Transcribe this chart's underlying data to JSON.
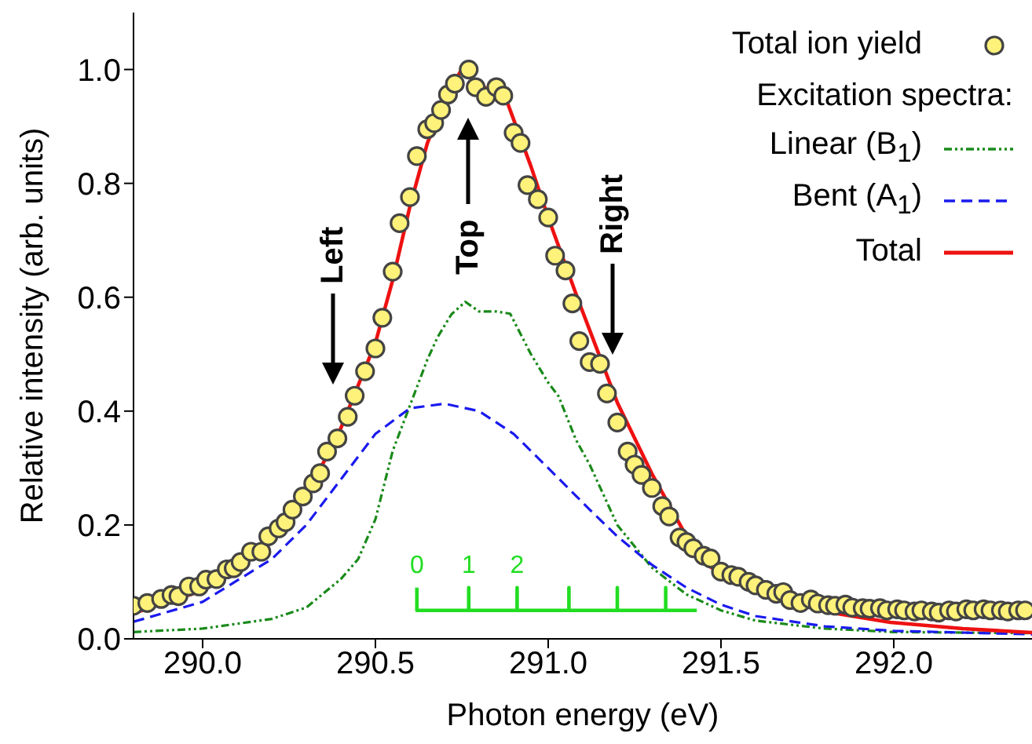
{
  "chart_data": {
    "type": "line",
    "xlabel": "Photon energy (eV)",
    "ylabel": "Relative intensity (arb. units)",
    "legend_title": "Excitation spectra:",
    "legend": "top right",
    "grid": false,
    "xlim": [
      289.8,
      292.4
    ],
    "xticks": [
      {
        "value": 290,
        "label": "290.0"
      },
      {
        "value": 290.5,
        "label": "290.5"
      },
      {
        "value": 291,
        "label": "291.0"
      },
      {
        "value": 291.5,
        "label": "291.5"
      },
      {
        "value": 292,
        "label": "292.0"
      }
    ],
    "ylim": [
      0,
      1.1
    ],
    "yticks": [
      {
        "value": 0,
        "label": "0.0"
      },
      0.2,
      0.4,
      0.6,
      0.8,
      {
        "value": 1,
        "label": "1.0"
      }
    ],
    "annotations": [
      "Left",
      "Top",
      "Right",
      "0",
      "1",
      "2"
    ],
    "series": [
      {
        "name": "Total ion yield",
        "type": "scatter",
        "marker": "circle",
        "color": "#fff27a",
        "x": [
          289.8,
          289.84,
          289.88,
          289.91,
          289.93,
          289.96,
          289.99,
          290.01,
          290.04,
          290.07,
          290.09,
          290.11,
          290.14,
          290.17,
          290.19,
          290.22,
          290.24,
          290.26,
          290.29,
          290.32,
          290.34,
          290.36,
          290.39,
          290.42,
          290.44,
          290.47,
          290.5,
          290.52,
          290.55,
          290.57,
          290.6,
          290.62,
          290.65,
          290.67,
          290.69,
          290.71,
          290.73,
          290.77,
          290.79,
          290.82,
          290.85,
          290.87,
          290.9,
          290.92,
          290.94,
          290.97,
          291,
          291.02,
          291.05,
          291.07,
          291.09,
          291.12,
          291.15,
          291.17,
          291.2,
          291.23,
          291.25,
          291.27,
          291.3,
          291.33,
          291.35,
          291.38,
          291.4,
          291.42,
          291.45,
          291.47,
          291.5,
          291.53,
          291.55,
          291.58,
          291.6,
          291.63,
          291.66,
          291.68,
          291.7,
          291.73,
          291.76,
          291.78,
          291.81,
          291.83,
          291.86,
          291.88,
          291.91,
          291.93,
          291.96,
          291.98,
          292.01,
          292.03,
          292.06,
          292.08,
          292.11,
          292.13,
          292.16,
          292.18,
          292.21,
          292.23,
          292.26,
          292.28,
          292.31,
          292.33,
          292.36,
          292.38
        ],
        "values": [
          0.058,
          0.063,
          0.07,
          0.077,
          0.075,
          0.092,
          0.092,
          0.104,
          0.105,
          0.122,
          0.124,
          0.135,
          0.153,
          0.153,
          0.18,
          0.194,
          0.205,
          0.227,
          0.25,
          0.273,
          0.291,
          0.329,
          0.352,
          0.39,
          0.427,
          0.47,
          0.51,
          0.564,
          0.645,
          0.73,
          0.776,
          0.848,
          0.895,
          0.906,
          0.929,
          0.956,
          0.975,
          1.0,
          0.969,
          0.952,
          0.969,
          0.954,
          0.889,
          0.871,
          0.797,
          0.772,
          0.74,
          0.673,
          0.647,
          0.589,
          0.523,
          0.486,
          0.483,
          0.431,
          0.38,
          0.329,
          0.306,
          0.288,
          0.265,
          0.233,
          0.215,
          0.178,
          0.17,
          0.159,
          0.146,
          0.141,
          0.118,
          0.112,
          0.109,
          0.1,
          0.094,
          0.086,
          0.079,
          0.082,
          0.068,
          0.063,
          0.069,
          0.062,
          0.059,
          0.058,
          0.06,
          0.055,
          0.054,
          0.053,
          0.054,
          0.05,
          0.052,
          0.05,
          0.048,
          0.05,
          0.048,
          0.046,
          0.05,
          0.048,
          0.052,
          0.05,
          0.052,
          0.05,
          0.05,
          0.048,
          0.05,
          0.05
        ]
      },
      {
        "name": "Linear (B$_{1}$)",
        "line_style": "dotted",
        "color": "#1a8a1a",
        "x": [
          289.8,
          290.0,
          290.2,
          290.3,
          290.4,
          290.45,
          290.5,
          290.55,
          290.6,
          290.65,
          290.68,
          290.72,
          290.76,
          290.8,
          290.85,
          290.89,
          290.95,
          291.0,
          291.03,
          291.08,
          291.12,
          291.2,
          291.3,
          291.4,
          291.5,
          291.6,
          291.8,
          292.0,
          292.4
        ],
        "values": [
          0.012,
          0.018,
          0.035,
          0.055,
          0.105,
          0.14,
          0.21,
          0.33,
          0.41,
          0.49,
          0.53,
          0.57,
          0.592,
          0.575,
          0.575,
          0.571,
          0.5,
          0.45,
          0.426,
          0.35,
          0.306,
          0.2,
          0.125,
          0.078,
          0.05,
          0.032,
          0.018,
          0.012,
          0.01
        ]
      },
      {
        "name": "Bent (A$_{1}$)",
        "line_style": "dashed",
        "color": "#1a1aee",
        "x": [
          289.8,
          290.0,
          290.2,
          290.3,
          290.4,
          290.5,
          290.6,
          290.7,
          290.8,
          290.9,
          291.0,
          291.12,
          291.2,
          291.3,
          291.4,
          291.5,
          291.6,
          291.8,
          292.0,
          292.4
        ],
        "values": [
          0.03,
          0.065,
          0.14,
          0.2,
          0.28,
          0.36,
          0.405,
          0.413,
          0.4,
          0.36,
          0.3,
          0.227,
          0.18,
          0.13,
          0.09,
          0.06,
          0.04,
          0.022,
          0.014,
          0.008
        ]
      },
      {
        "name": "Total",
        "line_style": "solid",
        "color": "#ee1111",
        "x": [
          289.8,
          290.0,
          290.2,
          290.3,
          290.4,
          290.5,
          290.55,
          290.6,
          290.65,
          290.7,
          290.75,
          290.8,
          290.85,
          290.88,
          290.95,
          291.0,
          291.09,
          291.2,
          291.3,
          291.4,
          291.46,
          291.5,
          291.6,
          291.8,
          291.99,
          292.2,
          292.4
        ],
        "values": [
          0.045,
          0.085,
          0.17,
          0.25,
          0.37,
          0.52,
          0.63,
          0.76,
          0.87,
          0.95,
          1.0,
          0.975,
          0.955,
          0.945,
          0.83,
          0.74,
          0.59,
          0.415,
          0.29,
          0.18,
          0.13,
          0.115,
          0.085,
          0.048,
          0.029,
          0.018,
          0.011
        ]
      },
      {
        "line_style": "solid",
        "color": "#22dd22",
        "x": [
          290.62,
          290.62,
          290.77,
          290.77,
          290.77,
          290.91,
          290.91,
          290.91,
          291.06,
          291.06,
          291.06,
          291.2,
          291.2,
          291.2,
          291.34,
          291.34,
          291.34,
          291.43
        ],
        "values": [
          0.09,
          0.05,
          0.05,
          0.09,
          0.05,
          0.05,
          0.09,
          0.05,
          0.05,
          0.09,
          0.05,
          0.05,
          0.09,
          0.05,
          0.05,
          0.09,
          0.05,
          0.05
        ]
      }
    ]
  }
}
